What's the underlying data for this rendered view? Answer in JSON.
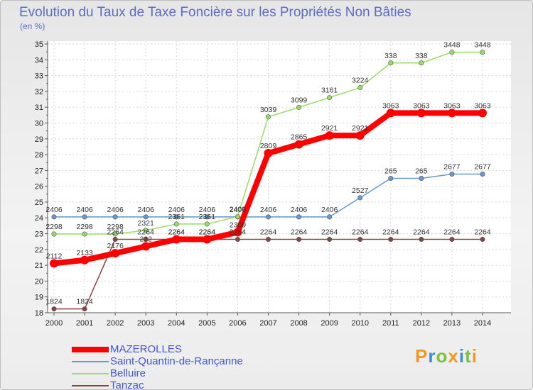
{
  "page": {
    "title": "Evolution du Taux de Taxe Foncière sur les Propriétés Non Bâties",
    "subtitle": "(en %)",
    "logo_text": "Proxiti",
    "logo_colors": [
      "#f39a1e",
      "#3a8fd6",
      "#7cc242",
      "#f39a1e",
      "#3a8fd6",
      "#7cc242",
      "#f39a1e"
    ]
  },
  "chart_data": {
    "type": "line",
    "title": "Evolution du Taux de Taxe Foncière sur les Propriétés Non Bâties",
    "ylabel": "(en %)",
    "xlabel": "",
    "x": [
      "2000",
      "2001",
      "2002",
      "2003",
      "2004",
      "2005",
      "2006",
      "2007",
      "2008",
      "2009",
      "2010",
      "2011",
      "2012",
      "2013",
      "2014"
    ],
    "ylim": [
      18,
      35
    ],
    "yticks": [
      18,
      19,
      20,
      21,
      22,
      23,
      24,
      25,
      26,
      27,
      28,
      29,
      30,
      31,
      32,
      33,
      34,
      35
    ],
    "legend_position": "bottom-left",
    "series": [
      {
        "name": "MAZEROLLES",
        "color": "#ff0000",
        "width": 8,
        "values": [
          21.12,
          21.33,
          21.76,
          22.2,
          22.64,
          22.64,
          23.09,
          28.09,
          28.65,
          29.21,
          29.21,
          30.63,
          30.63,
          30.63,
          30.63
        ],
        "labels": [
          "21.12",
          "21.33",
          "21.76",
          "22.2",
          "22.64",
          "22.64",
          "23.09",
          "28.09",
          "28.65",
          "29.21",
          "29.21",
          "30.63",
          "30.63",
          "30.63",
          "30.63"
        ]
      },
      {
        "name": "Saint-Quantin-de-Rançanne",
        "color": "#6699cc",
        "width": 1.5,
        "values": [
          24.06,
          24.06,
          24.06,
          24.06,
          24.06,
          24.06,
          24.06,
          24.06,
          24.06,
          24.06,
          25.27,
          26.5,
          26.5,
          26.77,
          26.77
        ],
        "labels": [
          "24.06",
          "24.06",
          "24.06",
          "24.06",
          "24.06",
          "24.06",
          "24.06",
          "24.06",
          "24.06",
          "24.06",
          "25.27",
          "26.5",
          "26.5",
          "26.77",
          "26.77"
        ]
      },
      {
        "name": "Belluire",
        "color": "#99dd66",
        "width": 1.5,
        "values": [
          22.98,
          22.98,
          22.98,
          23.21,
          23.61,
          23.61,
          24.08,
          30.39,
          30.99,
          31.61,
          32.24,
          33.8,
          33.8,
          34.48,
          34.48
        ],
        "labels": [
          "22.98",
          "22.98",
          "22.98",
          "23.21",
          "23.61",
          "23.61",
          "24.08",
          "30.39",
          "30.99",
          "31.61",
          "32.24",
          "33.8",
          "33.8",
          "34.48",
          "34.48"
        ]
      },
      {
        "name": "Tanzac",
        "color": "#884444",
        "width": 1.5,
        "values": [
          18.24,
          18.24,
          22.64,
          22.64,
          22.64,
          22.64,
          22.64,
          22.64,
          22.64,
          22.64,
          22.64,
          22.64,
          22.64,
          22.64,
          22.64
        ],
        "labels": [
          "18.24",
          "18.24",
          "22.64",
          "22.64",
          "22.64",
          "22.64",
          "22.64",
          "22.64",
          "22.64",
          "22.64",
          "22.64",
          "22.64",
          "22.64",
          "22.64",
          "22.64"
        ]
      }
    ]
  }
}
